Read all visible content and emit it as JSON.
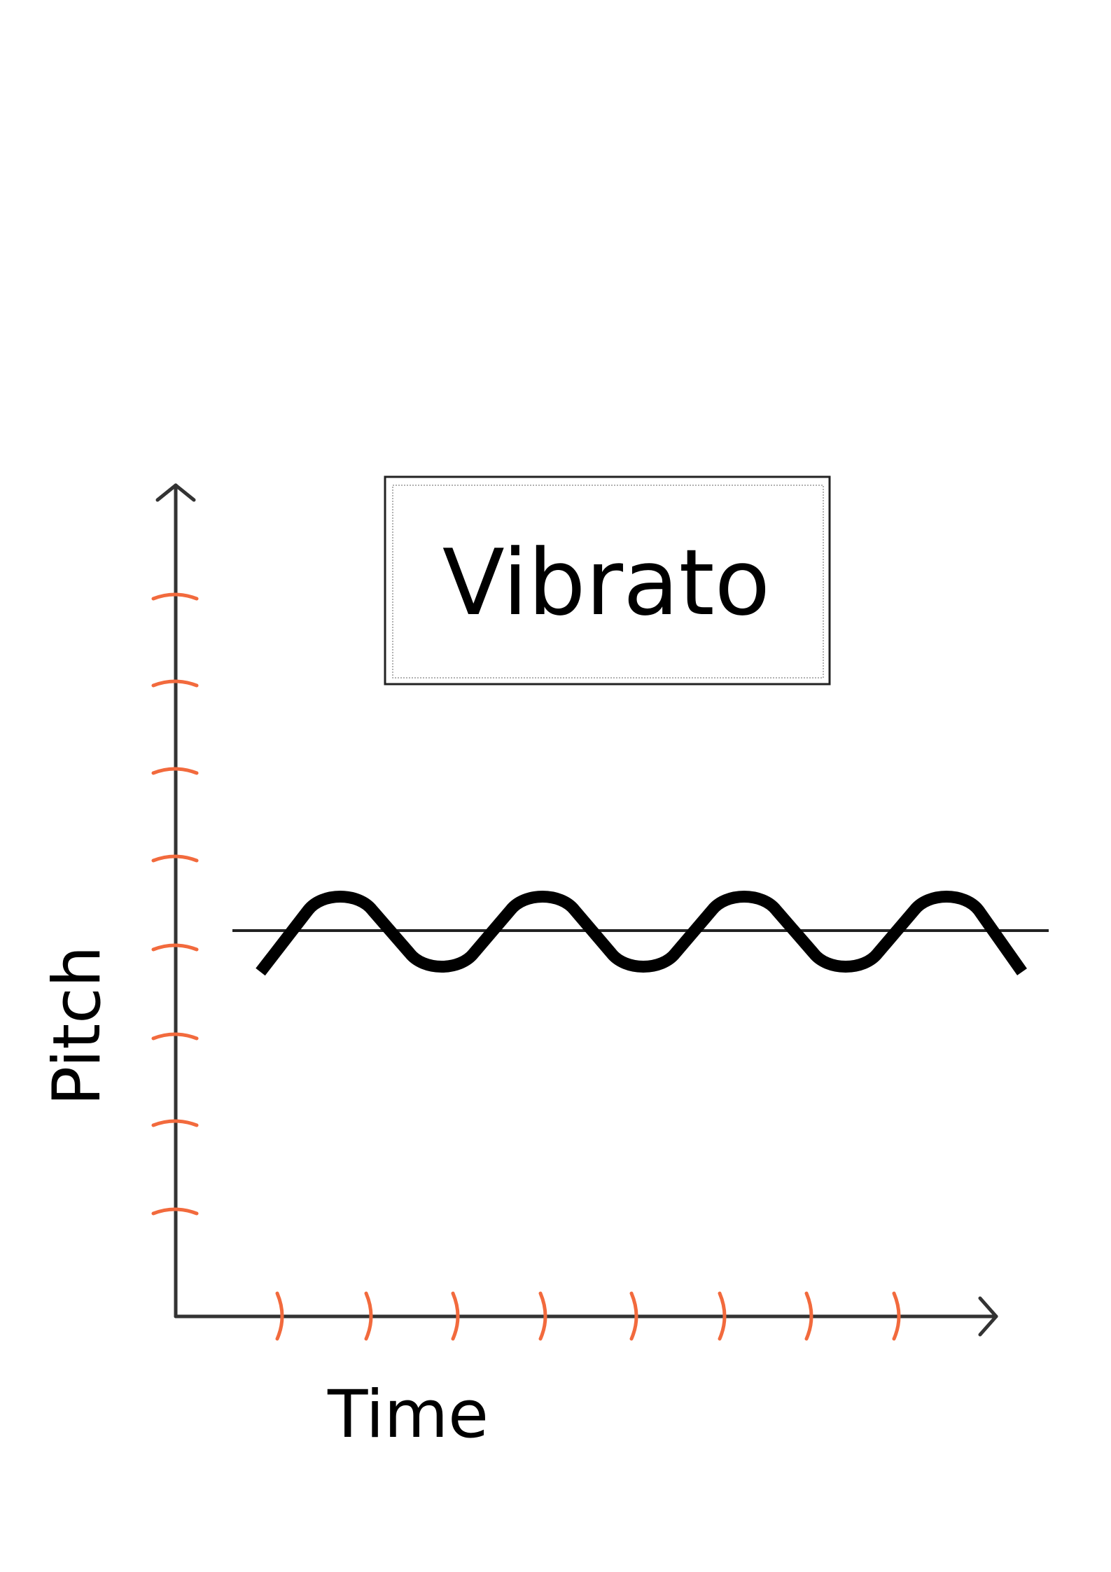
{
  "title": "Vibrato",
  "y_axis_label": "Pitch",
  "x_axis_label": "Time"
}
